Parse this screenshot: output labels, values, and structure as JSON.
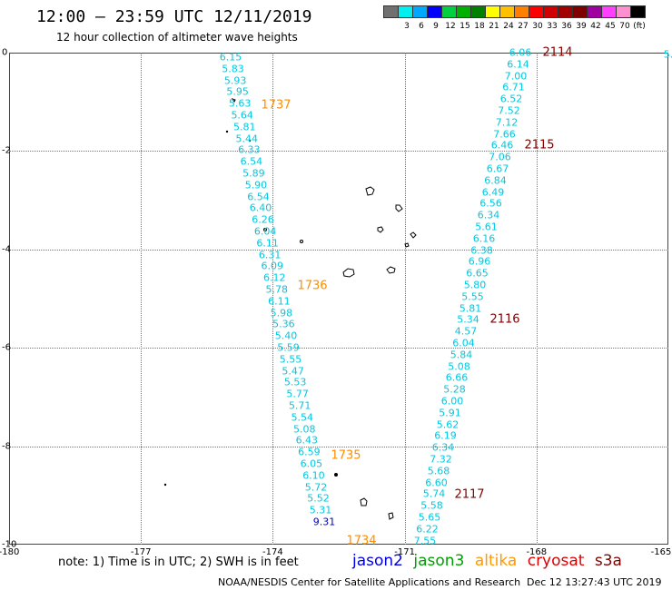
{
  "header": {
    "title": "12:00 — 23:59 UTC 12/11/2019",
    "subtitle": "12 hour collection of altimeter wave heights"
  },
  "legend": {
    "colors": [
      "#707070",
      "#00f0f0",
      "#00a8ff",
      "#0000ff",
      "#00d040",
      "#00b000",
      "#008000",
      "#ffff00",
      "#ffc000",
      "#ff8000",
      "#ff0000",
      "#d00000",
      "#a00000",
      "#800000",
      "#a000a0",
      "#ff40ff",
      "#ff90d0",
      "#000000"
    ],
    "ticks": [
      "3",
      "6",
      "9",
      "12",
      "15",
      "18",
      "21",
      "24",
      "27",
      "30",
      "33",
      "36",
      "39",
      "42",
      "45",
      "70",
      "(ft)"
    ]
  },
  "axes": {
    "lat_labels": [
      "0",
      "-2",
      "-4",
      "-6",
      "-8",
      "-10"
    ],
    "lon_labels": [
      "-180",
      "-177",
      "-174",
      "-171",
      "-168",
      "-165"
    ]
  },
  "tracks": [
    {
      "satellite": "altika",
      "color": "#00c8e0",
      "values": [
        "6.15",
        "5.83",
        "5.93",
        "5.95",
        "5.63",
        "5.64",
        "5.81",
        "5.44",
        "6.33",
        "6.54",
        "5.89",
        "5.90",
        "6.54",
        "6.40",
        "6.26",
        "6.04",
        "6.11",
        "6.31",
        "6.09",
        "6.12",
        "5.78",
        "6.11",
        "5.98",
        "5.36",
        "5.40",
        "5.59",
        "5.55",
        "5.47",
        "5.53",
        "5.77",
        "5.71",
        "5.54",
        "5.08",
        "6.43",
        "6.59",
        "6.05",
        "6.10",
        "5.72",
        "5.52",
        "5.31",
        "9.31"
      ],
      "times": [
        "1737",
        "1736",
        "1735",
        "1734"
      ]
    },
    {
      "satellite": "s3a",
      "color": "#00c8e0",
      "values": [
        "6.06",
        "6.14",
        "7.00",
        "6.71",
        "6.52",
        "7.52",
        "7.12",
        "7.66",
        "6.46",
        "7.06",
        "6.67",
        "6.84",
        "6.49",
        "6.56",
        "6.34",
        "5.61",
        "6.16",
        "6.38",
        "6.96",
        "6.65",
        "5.80",
        "5.55",
        "5.81",
        "5.34",
        "4.57",
        "6.04",
        "5.84",
        "5.08",
        "6.66",
        "5.28",
        "6.00",
        "5.91",
        "5.62",
        "6.19",
        "6.34",
        "7.32",
        "5.68",
        "6.60",
        "5.74",
        "5.58",
        "5.65",
        "6.22",
        "7.55"
      ],
      "times": [
        "2114",
        "2115",
        "2116",
        "2117"
      ]
    }
  ],
  "edge_value": "5.",
  "note": "note:  1) Time is in UTC; 2) SWH is in feet",
  "satellites": [
    {
      "name": "jason2",
      "color": "#0000e0"
    },
    {
      "name": "jason3",
      "color": "#00a000"
    },
    {
      "name": "altika",
      "color": "#ff9900"
    },
    {
      "name": "cryosat",
      "color": "#e00000"
    },
    {
      "name": "s3a",
      "color": "#800000"
    }
  ],
  "credit": "NOAA/NESDIS Center for Satellite Applications and Research",
  "timestamp": "Dec 12 13:27:43 UTC 2019"
}
